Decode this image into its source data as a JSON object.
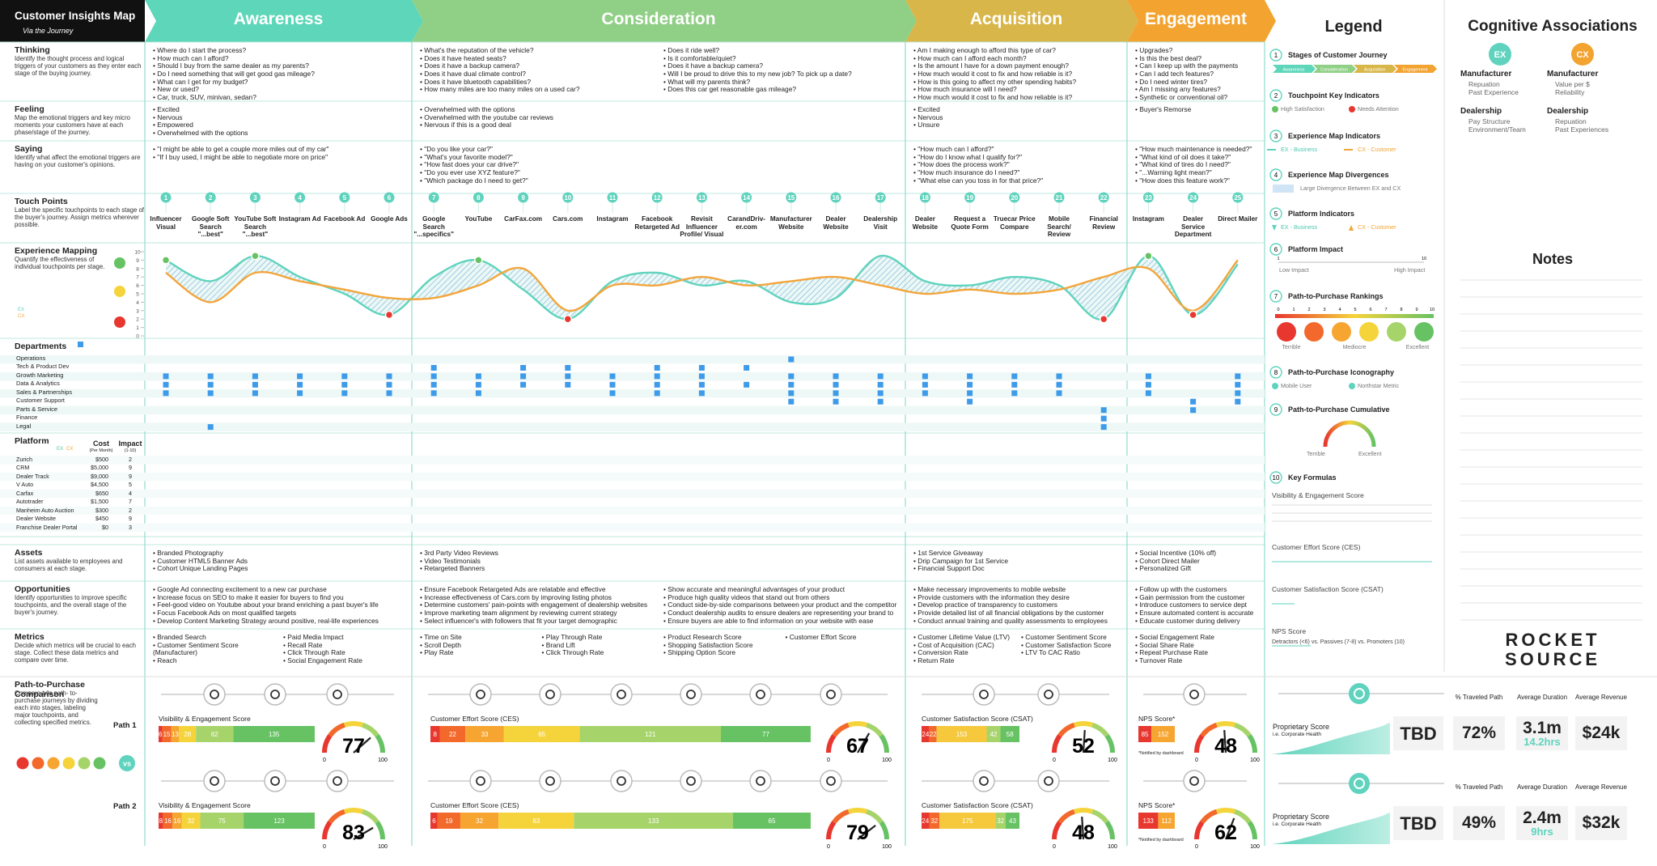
{
  "header": {
    "title": "Customer Insights Map",
    "subtitle": "Via the Journey"
  },
  "row_labels": [
    {
      "title": "Thinking",
      "desc": "Identify the thought process and logical triggers of your customers as they enter each stage of the buying journey."
    },
    {
      "title": "Feeling",
      "desc": "Map the emotional triggers and key micro moments your customers have at each phase/stage of the journey."
    },
    {
      "title": "Saying",
      "desc": "Identify what affect the emotional triggers are having on your customer's opinions."
    },
    {
      "title": "Touch Points",
      "desc": "Label the specific touchpoints to each stage of the buyer's journey. Assign metrics wherever possible."
    },
    {
      "title": "Experience Mapping",
      "desc": "Quantify the effectiveness of individual touchpoints per stage."
    },
    {
      "title": "Departments"
    },
    {
      "title": "Platform"
    },
    {
      "title": "Assets",
      "desc": "List assets available to employees and consumers at each stage."
    },
    {
      "title": "Opportunities",
      "desc": "Identify opportunities to improve specific touchpoints, and the overall stage of the buyer's journey."
    },
    {
      "title": "Metrics",
      "desc": "Decide which metrics will be crucial to each stage. Collect these data metrics and compare over time."
    },
    {
      "title": "Path-to-Purchase Comparison",
      "desc": "Compare two path- to-purchase journeys by dividing each into stages, labeling major touchpoints, and collecting specified metrics."
    }
  ],
  "stages": [
    {
      "name": "Awareness",
      "color": "#5dd6b9",
      "thinking": [
        "Where do I start the process?",
        "How much can I afford?",
        "Should I buy from the same dealer as my parents?",
        "Do I need something that will get good gas mileage?",
        "What can I get for my budget?",
        "New or used?",
        "Car, truck, SUV, minivan, sedan?"
      ],
      "feeling": [
        "Excited",
        "Nervous",
        "Empowered",
        "Overwhelmed with the options"
      ],
      "saying": [
        "\"I might be able to get a couple more miles out of my car\"",
        "\"If I buy used, I might be able to negotiate more on price\""
      ],
      "touchpoints": [
        {
          "n": 1,
          "label": "Influencer Visual"
        },
        {
          "n": 2,
          "label": "Google Soft Search \"...best\""
        },
        {
          "n": 3,
          "label": "YouTube Soft Search \"...best\""
        },
        {
          "n": 4,
          "label": "Instagram Ad"
        },
        {
          "n": 5,
          "label": "Facebook Ad"
        },
        {
          "n": 6,
          "label": "Google Ads"
        }
      ],
      "assets": [
        "Branded Photography",
        "Customer HTML5 Banner Ads",
        "Cohort Unique Landing Pages"
      ],
      "opportunities": [
        "Google Ad connecting excitement to a new car purchase",
        "Increase focus on SEO to make it easier for buyers to find you",
        "Feel-good video on Youtube about your brand enriching a past buyer's life",
        "Focus Facebook Ads on most qualified targets",
        "Develop Content Marketing Strategy around positive, real-life experiences"
      ],
      "metrics": [
        "Branded Search",
        "Customer Sentiment Score (Manufacturer)",
        "Reach",
        "Paid Media Impact",
        "Recall Rate",
        "Click Through Rate",
        "Social Engagement Rate"
      ],
      "path_scores": {
        "name": "Visibility & Engagement Score",
        "colors": [
          "#e8372f",
          "#f2692b",
          "#f7a531",
          "#f5d43b",
          "#a6d46a",
          "#67c264"
        ],
        "paths": [
          {
            "segments": [
              6,
              15,
              13,
              28,
              62,
              135
            ],
            "score": 77
          },
          {
            "segments": [
              8,
              16,
              16,
              32,
              75,
              123
            ],
            "score": 83
          }
        ]
      }
    },
    {
      "name": "Consideration",
      "color": "#90cf86",
      "thinking": [
        "What's the reputation of the vehicle?",
        "Does it have heated seats?",
        "Does it have a backup camera?",
        "Does it have dual climate control?",
        "Does it have bluetooth capabilities?",
        "How many miles are too many miles on a used car?",
        "Does it ride well?",
        "Is it comfortable/quiet?",
        "Does it have a backup camera?",
        "Will I be proud to drive this to my new job? To pick up a date?",
        "What will my parents think?",
        "Does this car get reasonable gas mileage?"
      ],
      "feeling": [
        "Overwhelmed with the options",
        "Overwhelmed with the youtube car reviews",
        "Nervous if this is a good deal"
      ],
      "saying": [
        "\"Do you like your car?\"",
        "\"What's your favorite model?\"",
        "\"How fast does your car drive?\"",
        "\"Do you ever use XYZ feature?\"",
        "\"Which package do I need to get?\""
      ],
      "touchpoints": [
        {
          "n": 7,
          "label": "Google Search \"...specifics\""
        },
        {
          "n": 8,
          "label": "YouTube"
        },
        {
          "n": 9,
          "label": "CarFax.com"
        },
        {
          "n": 10,
          "label": "Cars.com"
        },
        {
          "n": 11,
          "label": "Instagram"
        },
        {
          "n": 12,
          "label": "Facebook Retargeted Ad"
        },
        {
          "n": 13,
          "label": "Revisit Influencer Profile/ Visual"
        },
        {
          "n": 14,
          "label": "CarandDriv-er.com"
        },
        {
          "n": 15,
          "label": "Manufacturer Website"
        },
        {
          "n": 16,
          "label": "Dealer Website"
        },
        {
          "n": 17,
          "label": "Dealership Visit"
        }
      ],
      "assets": [
        "3rd Party Video Reviews",
        "Video Testimonials",
        "Retargeted Banners"
      ],
      "opportunities": [
        "Ensure Facebook Retargeted Ads are relatable and effective",
        "Increase effectiveness of Cars.com by improving listing photos",
        "Determine customers' pain-points with engagement of dealership websites",
        "Improve marketing team alignment by reviewing current strategy",
        "Select influencer's with followers that fit your target demographic",
        "Show accurate and meaningful advantages of your product",
        "Produce high quality videos that stand out from others",
        "Conduct side-by-side comparisons between your product and the competitor",
        "Conduct dealership audits to ensure dealers are representing your brand to",
        "Ensure buyers are able to find information on your website with ease"
      ],
      "metrics": [
        "Time on Site",
        "Scroll Depth",
        "Play Rate",
        "Play Through Rate",
        "Brand Lift",
        "Click Through Rate",
        "Product Research Score",
        "Shopping Satisfaction Score",
        "Shipping Option Score",
        "Customer Effort Score"
      ],
      "path_scores": {
        "name": "Customer Effort Score (CES)",
        "colors": [
          "#e8372f",
          "#f2692b",
          "#f7a531",
          "#f5d43b",
          "#a6d46a",
          "#67c264"
        ],
        "paths": [
          {
            "segments": [
              8,
              22,
              33,
              65,
              121,
              77
            ],
            "score": 67
          },
          {
            "segments": [
              6,
              19,
              32,
              63,
              133,
              65
            ],
            "score": 79
          }
        ]
      }
    },
    {
      "name": "Acquisition",
      "color": "#d9b64a",
      "thinking": [
        "Am I making enough to afford this type of car?",
        "How much can I afford each month?",
        "Is the amount I have for a down payment enough?",
        "How much would it cost to fix and how reliable is it?",
        "How is this going to affect my other spending habits?",
        "How much insurance will I need?",
        "How much would it cost to fix and how reliable is it?"
      ],
      "feeling": [
        "Excited",
        "Nervous",
        "Unsure"
      ],
      "saying": [
        "\"How much can I afford?\"",
        "\"How do I know what I qualify for?\"",
        "\"How does the process work?\"",
        "\"How much insurance do I need?\"",
        "\"What else can you toss in for that price?\""
      ],
      "touchpoints": [
        {
          "n": 18,
          "label": "Dealer Website"
        },
        {
          "n": 19,
          "label": "Request a Quote Form"
        },
        {
          "n": 20,
          "label": "Truecar Price Compare"
        },
        {
          "n": 21,
          "label": "Mobile Search/ Review"
        },
        {
          "n": 22,
          "label": "Financial Review"
        }
      ],
      "assets": [
        "1st Service Giveaway",
        "Drip Campaign for 1st Service",
        "Financial Support Doc"
      ],
      "opportunities": [
        "Make necessary improvements to mobile website",
        "Provide customers with the information they desire",
        "Develop practice of transparency to customers",
        "Provide detailed list of all financial obligations by the customer",
        "Conduct annual training and quality assessments to employees"
      ],
      "metrics": [
        "Customer Lifetime Value (LTV)",
        "Cost of Acquisition (CAC)",
        "Conversion Rate",
        "Return Rate",
        "Customer Sentiment Score",
        "Customer Satisfaction Score",
        "LTV To CAC Ratio"
      ],
      "path_scores": {
        "name": "Customer Satisfaction Score (CSAT)",
        "colors": [
          "#e8372f",
          "#f2692b",
          "#f5c93b",
          "#a6d46a",
          "#67c264"
        ],
        "paths": [
          {
            "segments": [
              24,
              22,
              153,
              42,
              58
            ],
            "score": 52
          },
          {
            "segments": [
              24,
              32,
              175,
              32,
              43
            ],
            "score": 48
          }
        ]
      }
    },
    {
      "name": "Engagement",
      "color": "#f2a330",
      "thinking": [
        "Upgrades?",
        "Is this the best deal?",
        "Can I keep up with the payments",
        "Can I add tech features?",
        "Do I need winter tires?",
        "Am I missing any features?",
        "Synthetic or conventional oil?"
      ],
      "feeling": [
        "Buyer's Remorse"
      ],
      "saying": [
        "\"How much maintenance is needed?\"",
        "\"What kind of oil does it take?\"",
        "\"What kind of tires do I need?\"",
        "\"...Warning light mean?\"",
        "\"How does this feature work?\""
      ],
      "touchpoints": [
        {
          "n": 23,
          "label": "Instagram"
        },
        {
          "n": 24,
          "label": "Dealer Service Department"
        },
        {
          "n": 25,
          "label": "Direct Mailer"
        }
      ],
      "assets": [
        "Social Incentive (10% off)",
        "Cohort Direct Mailer",
        "Personalized Gift"
      ],
      "opportunities": [
        "Follow up with the customers",
        "Gain permission from the customer",
        "Introduce customers to service dept",
        "Ensure automated content is accurate",
        "Educate customer during delivery"
      ],
      "metrics": [
        "Social Engagement Rate",
        "Social Share Rate",
        "Repeat Purchase Rate",
        "Turnover Rate"
      ],
      "path_scores": {
        "name": "NPS Score*",
        "note": "*Notified by dashboard",
        "colors": [
          "#e8372f",
          "#f7a531"
        ],
        "paths": [
          {
            "segments": [
              85,
              152
            ],
            "score": 48
          },
          {
            "segments": [
              133,
              112
            ],
            "score": 62
          }
        ]
      }
    }
  ],
  "experience_map": {
    "ylim": [
      0,
      10
    ],
    "yticks": [
      0,
      1,
      2,
      3,
      4,
      5,
      6,
      7,
      8,
      9,
      10
    ],
    "ex": {
      "name": "EX",
      "color": "#5fd3bd",
      "values": [
        9.0,
        6.5,
        9.5,
        7.0,
        5.0,
        2.5,
        7.0,
        9.0,
        5.5,
        2.0,
        6.5,
        7.5,
        6.0,
        6.5,
        4.0,
        4.5,
        9.5,
        6.5,
        6.0,
        7.0,
        6.0,
        2.0,
        9.5,
        2.5,
        8.5
      ]
    },
    "cx": {
      "name": "CX",
      "color": "#f3a53b",
      "values": [
        7.5,
        4.0,
        7.5,
        6.5,
        5.5,
        4.5,
        4.5,
        6.0,
        8.0,
        3.0,
        6.0,
        6.0,
        7.0,
        6.0,
        6.5,
        7.0,
        6.0,
        5.0,
        5.5,
        5.0,
        5.5,
        7.0,
        8.0,
        3.0,
        9.0
      ]
    },
    "high_satisfaction": [
      0,
      2,
      7,
      22
    ],
    "needs_attention": [
      5,
      9,
      21,
      23
    ]
  },
  "departments": {
    "names": [
      "Operations",
      "Tech & Product Dev",
      "Growth Marketing",
      "Data & Analytics",
      "Sales & Partnerships",
      "Customer Support",
      "Parts & Service",
      "Finance",
      "Legal"
    ],
    "color": "#3d9be9",
    "touchpoint_departments": [
      [
        2,
        3,
        4
      ],
      [
        2,
        3,
        4,
        8
      ],
      [
        2,
        3,
        4
      ],
      [
        2,
        3,
        4
      ],
      [
        2,
        3,
        4
      ],
      [
        2,
        3,
        4
      ],
      [
        1,
        2,
        3,
        4
      ],
      [
        2,
        3,
        4
      ],
      [
        1,
        2,
        3
      ],
      [
        1,
        2,
        3
      ],
      [
        2,
        3,
        4
      ],
      [
        1,
        2,
        3,
        4
      ],
      [
        1,
        2,
        3,
        4
      ],
      [
        1,
        3
      ],
      [
        0,
        2,
        3,
        4,
        5
      ],
      [
        2,
        3,
        4,
        5
      ],
      [
        2,
        3,
        4,
        5
      ],
      [
        2,
        3,
        4
      ],
      [
        2,
        3,
        4,
        5
      ],
      [
        2,
        3,
        4
      ],
      [
        2,
        3,
        4
      ],
      [
        6,
        7,
        8
      ],
      [
        2,
        3,
        4
      ],
      [
        5,
        6
      ],
      [
        2,
        3,
        4,
        5
      ]
    ]
  },
  "platforms": {
    "ex": "EX",
    "cx": "CX",
    "cost": "Cost",
    "cost_sub": "(Per Month)",
    "impact": "Impact",
    "impact_sub": "(1-10)",
    "rows": [
      {
        "name": "Zurich",
        "cost": "$500",
        "impact": 2
      },
      {
        "name": "CRM",
        "cost": "$5,000",
        "impact": 9
      },
      {
        "name": "Dealer Track",
        "cost": "$9,000",
        "impact": 9
      },
      {
        "name": "V Auto",
        "cost": "$4,500",
        "impact": 5
      },
      {
        "name": "Carfax",
        "cost": "$650",
        "impact": 4
      },
      {
        "name": "Autotrader",
        "cost": "$1,500",
        "impact": 7
      },
      {
        "name": "Manheim Auto Auction",
        "cost": "$300",
        "impact": 2
      },
      {
        "name": "Dealer Website",
        "cost": "$450",
        "impact": 9
      },
      {
        "name": "Franchise Dealer Portal",
        "cost": "$0",
        "impact": 3
      }
    ]
  },
  "path_comparison": {
    "paths": [
      "Path 1",
      "Path 2"
    ],
    "vs": "vs",
    "gauge_range": [
      0,
      100
    ]
  },
  "summary": {
    "proprietary": "Proprietary Score",
    "proprietary_sub": "i.e. Corporate Health",
    "metric_names": [
      "% Traveled Path",
      "Average Duration",
      "Average Revenue"
    ],
    "paths": [
      {
        "score": "TBD",
        "traveled": "72%",
        "duration": "3.1m",
        "duration_sub": "14.2hrs",
        "revenue": "$24k"
      },
      {
        "score": "TBD",
        "traveled": "49%",
        "duration": "2.4m",
        "duration_sub": "9hrs",
        "revenue": "$32k"
      }
    ]
  },
  "legend": {
    "title": "Legend",
    "items": [
      {
        "n": 1,
        "title": "Stages of Customer Journey"
      },
      {
        "n": 2,
        "title": "Touchpoint Key Indicators",
        "labels": [
          "High Satisfaction",
          "Needs Attention"
        ]
      },
      {
        "n": 3,
        "title": "Experience Map Indicators",
        "labels": [
          "EX - Business",
          "CX - Customer"
        ]
      },
      {
        "n": 4,
        "title": "Experience Map Divergences",
        "labels": [
          "Large Divergence Between EX and CX"
        ]
      },
      {
        "n": 5,
        "title": "Platform Indicators",
        "labels": [
          "EX - Business",
          "CX - Customer"
        ]
      },
      {
        "n": 6,
        "title": "Platform Impact",
        "labels": [
          "Low Impact",
          "High Impact"
        ],
        "scale": [
          1,
          10
        ]
      },
      {
        "n": 7,
        "title": "Path-to-Purchase Rankings",
        "labels": [
          "Terrible",
          "Mediocre",
          "Excellent"
        ],
        "scale": [
          0,
          1,
          2,
          3,
          4,
          5,
          6,
          7,
          8,
          9,
          10
        ]
      },
      {
        "n": 8,
        "title": "Path-to-Purchase Iconography",
        "labels": [
          "Mobile User",
          "Northstar Metric"
        ]
      },
      {
        "n": 9,
        "title": "Path-to-Purchase Cumulative",
        "labels": [
          "Terrible",
          "Excellent"
        ]
      },
      {
        "n": 10,
        "title": "Key Formulas",
        "labels": [
          "Visibility & Engagement Score",
          "Customer Effort Score (CES)",
          "Customer Satisfaction Score (CSAT)",
          "NPS Score",
          "Detractors (<6) vs. Passives (7-8) vs. Promoters (10)"
        ]
      }
    ]
  },
  "cognitive": {
    "title": "Cognitive Associations",
    "ex": "EX",
    "cx": "CX",
    "ex_groups": [
      {
        "name": "Manufacturer",
        "items": [
          "Repuation",
          "Past Experience"
        ]
      },
      {
        "name": "Dealership",
        "items": [
          "Pay Structure",
          "Environment/Team"
        ]
      }
    ],
    "cx_groups": [
      {
        "name": "Manufacturer",
        "items": [
          "Value per $",
          "Reliability"
        ]
      },
      {
        "name": "Dealership",
        "items": [
          "Repuation",
          "Past Experiences"
        ]
      }
    ]
  },
  "notes": {
    "title": "Notes"
  },
  "logo": [
    "ROCKET",
    "SOURCE"
  ]
}
